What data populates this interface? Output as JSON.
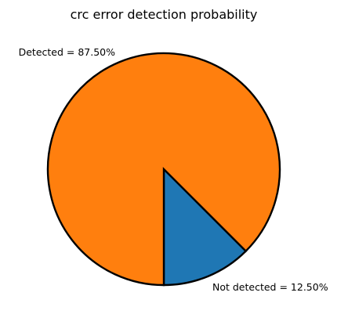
{
  "chart_data": {
    "type": "pie",
    "title": "crc error detection probability",
    "slices": [
      {
        "name": "Not detected",
        "value": 12.5,
        "label": "Not detected = 12.50%",
        "color": "#1f77b4"
      },
      {
        "name": "Detected",
        "value": 87.5,
        "label": "Detected = 87.50%",
        "color": "#ff7f0e"
      }
    ],
    "edge_color": "#000000"
  }
}
